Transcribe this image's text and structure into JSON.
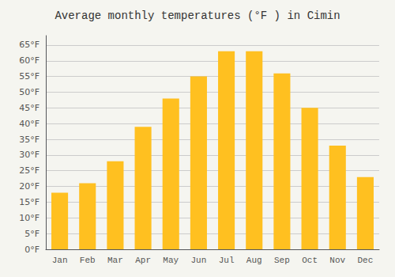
{
  "chart_data": {
    "type": "bar",
    "title": "Average monthly temperatures (°F ) in Cimin",
    "categories": [
      "Jan",
      "Feb",
      "Mar",
      "Apr",
      "May",
      "Jun",
      "Jul",
      "Aug",
      "Sep",
      "Oct",
      "Nov",
      "Dec"
    ],
    "values": [
      18,
      21,
      28,
      39,
      48,
      55,
      63,
      63,
      56,
      45,
      33,
      23
    ],
    "color": "#FFC020",
    "ylim": [
      0,
      68
    ],
    "yticks": [
      {
        "value": 0,
        "label": "0°F"
      },
      {
        "value": 5,
        "label": "5°F"
      },
      {
        "value": 10,
        "label": "10°F"
      },
      {
        "value": 15,
        "label": "15°F"
      },
      {
        "value": 20,
        "label": "20°F"
      },
      {
        "value": 25,
        "label": "25°F"
      },
      {
        "value": 30,
        "label": "30°F"
      },
      {
        "value": 35,
        "label": "35°F"
      },
      {
        "value": 40,
        "label": "40°F"
      },
      {
        "value": 45,
        "label": "45°F"
      },
      {
        "value": 50,
        "label": "50°F"
      },
      {
        "value": 55,
        "label": "55°F"
      },
      {
        "value": 60,
        "label": "60°F"
      },
      {
        "value": 65,
        "label": "65°F"
      }
    ],
    "grid": true
  }
}
